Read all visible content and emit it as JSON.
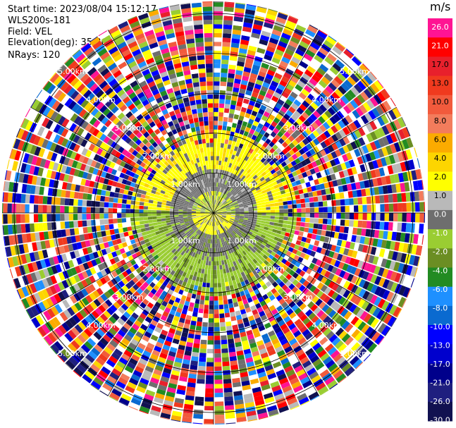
{
  "header": {
    "start_time": "Start time: 2023/08/04 15:12:17",
    "instrument": "WLS200s-181",
    "field": "Field: VEL",
    "elevation": "Elevation(deg): 35.30",
    "nrays": "NRays: 120"
  },
  "chart_data": {
    "type": "heatmap",
    "projection": "polar-ppi",
    "field": "VEL",
    "units": "m/s",
    "nrays": 120,
    "range_rings_km": [
      1.0,
      2.0,
      3.0,
      4.0,
      5.0
    ],
    "ring_labels": [
      "1.00km",
      "2.00km",
      "3.00km",
      "4.00km",
      "5.00km"
    ],
    "max_range_km": 5.3,
    "colorbar": {
      "title": "m/s",
      "ticks": [
        "26.0",
        "21.0",
        "17.0",
        "13.0",
        "10.0",
        "8.0",
        "6.0",
        "4.0",
        "2.0",
        "1.0",
        "0.0",
        "-1.0",
        "-2.0",
        "-4.0",
        "-6.0",
        "-8.0",
        "-10.0",
        "-13.0",
        "-17.0",
        "-21.0",
        "-26.0",
        "-30.0"
      ],
      "colors": [
        "#ff1493",
        "#ff0000",
        "#e8202c",
        "#f03a1e",
        "#f25a3c",
        "#f37c5c",
        "#fbab00",
        "#fdd500",
        "#ffff00",
        "#b9b9b9",
        "#6e6e6e",
        "#9acd32",
        "#6b8e23",
        "#228b22",
        "#1e90ff",
        "#0a6ad0",
        "#0000ff",
        "#0000cd",
        "#00008b",
        "#1f1f7f",
        "#111150"
      ]
    },
    "regions": [
      {
        "range_km": [
          0.0,
          0.5
        ],
        "description": "near-zero mixed",
        "dominant": [
          "#9acd32",
          "#ffff00",
          "#6e6e6e"
        ]
      },
      {
        "range_km": [
          0.5,
          1.1
        ],
        "azimuth_north_half": "#6e6e6e",
        "azimuth_south_half": "#9acd32"
      },
      {
        "range_km": [
          1.1,
          2.0
        ],
        "azimuth_north_half": "#ffff00",
        "azimuth_south_half": "#9acd32"
      },
      {
        "range_km": [
          2.0,
          5.3
        ],
        "description": "noise",
        "dominant": "random"
      }
    ]
  }
}
